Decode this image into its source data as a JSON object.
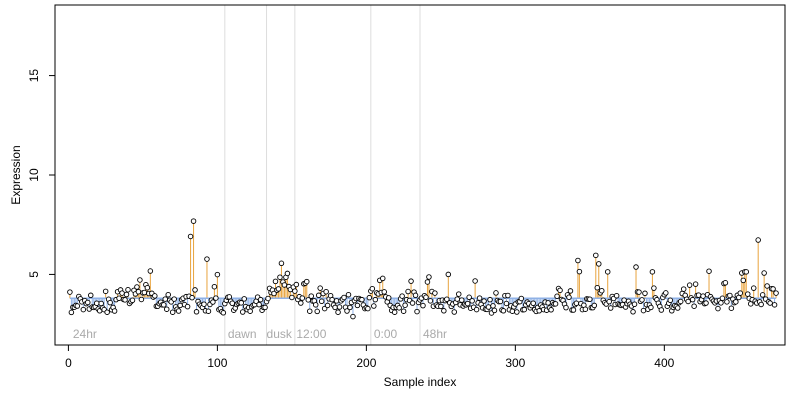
{
  "chart_data": {
    "type": "scatter",
    "title": "",
    "xlabel": "Sample index",
    "ylabel": "Expression",
    "xlim": [
      -9,
      481
    ],
    "ylim": [
      1.45,
      18.55
    ],
    "xticks": [
      0,
      100,
      200,
      300,
      400
    ],
    "yticks": [
      5,
      10,
      15
    ],
    "baseline": 3.8,
    "colors": {
      "above": "#e8a33c",
      "below": "#8fb1e6",
      "point_stroke": "#000000",
      "point_fill": "#ffffff",
      "vline": "#dddddd",
      "region_label": "#aaaaaa"
    },
    "vlines": [
      105,
      133,
      152,
      203,
      236
    ],
    "region_labels": [
      {
        "x": 3,
        "text": "24hr"
      },
      {
        "x": 107,
        "text": "dawn"
      },
      {
        "x": 133,
        "text": "dusk"
      },
      {
        "x": 153,
        "text": "12:00"
      },
      {
        "x": 205,
        "text": "0:00"
      },
      {
        "x": 238,
        "text": "48hr"
      }
    ],
    "x_start": 1,
    "values": [
      4.11,
      3.09,
      3.35,
      3.35,
      3.44,
      3.41,
      3.89,
      3.77,
      3.62,
      3.23,
      3.68,
      3.53,
      3.59,
      3.26,
      3.95,
      3.36,
      3.34,
      3.38,
      3.55,
      3.26,
      3.17,
      3.54,
      3.31,
      3.23,
      4.15,
      3.1,
      3.75,
      3.58,
      3.22,
      3.34,
      3.16,
      3.73,
      4.13,
      3.8,
      4.22,
      4.06,
      3.74,
      3.72,
      3.99,
      4.23,
      3.54,
      3.63,
      3.7,
      4.2,
      4.02,
      4.37,
      4.13,
      4.72,
      3.74,
      4.07,
      4.09,
      4.48,
      4.33,
      4.04,
      5.17,
      4.05,
      3.86,
      3.92,
      3.4,
      3.4,
      3.53,
      3.6,
      3.47,
      3.47,
      3.76,
      3.25,
      3.98,
      3.7,
      3.62,
      3.1,
      3.76,
      3.37,
      3.25,
      3.16,
      3.44,
      3.73,
      3.8,
      3.48,
      3.88,
      3.38,
      3.9,
      6.91,
      3.83,
      7.68,
      4.22,
      3.12,
      3.64,
      3.5,
      3.42,
      3.34,
      3.5,
      3.17,
      5.77,
      3.15,
      3.49,
      3.71,
      3.61,
      4.38,
      3.81,
      4.99,
      3.23,
      3.28,
      3.13,
      3.07,
      3.53,
      3.7,
      3.85,
      3.87,
      3.65,
      3.55,
      3.2,
      3.31,
      3.49,
      3.55,
      3.6,
      3.57,
      3.11,
      3.77,
      3.38,
      3.23,
      3.33,
      3.15,
      3.38,
      3.45,
      3.48,
      3.65,
      3.86,
      3.48,
      3.73,
      3.2,
      3.34,
      3.34,
      3.63,
      3.79,
      4.3,
      4.09,
      4.21,
      4.04,
      4.65,
      4.21,
      4.27,
      4.86,
      5.56,
      4.62,
      4.47,
      4.86,
      5.05,
      4.39,
      4.24,
      3.84,
      4.36,
      4.16,
      4.49,
      3.74,
      3.88,
      3.56,
      3.81,
      4.53,
      4.56,
      4.64,
      3.72,
      3.15,
      3.91,
      3.66,
      3.67,
      3.47,
      3.14,
      3.95,
      4.31,
      3.65,
      4.04,
      3.28,
      4.13,
      3.44,
      3.77,
      3.93,
      3.73,
      3.46,
      3.34,
      3.67,
      3.1,
      3.36,
      3.67,
      3.76,
      3.84,
      3.35,
      3.16,
      3.98,
      3.34,
      3.59,
      2.88,
      3.68,
      3.79,
      3.44,
      3.79,
      3.74,
      3.73,
      3.46,
      3.28,
      3.33,
      3.28,
      3.83,
      4.16,
      4.28,
      3.41,
      3.73,
      4.07,
      4.02,
      4.7,
      4.09,
      4.8,
      4.12,
      3.87,
      3.62,
      3.82,
      3.44,
      3.19,
      3.34,
      3.1,
      3.35,
      3.44,
      3.32,
      3.77,
      3.91,
      3.15,
      3.45,
      3.73,
      4.14,
      3.69,
      4.66,
      3.56,
      4.11,
      3.95,
      3.13,
      3.59,
      3.72,
      3.81,
      3.43,
      3.93,
      3.85,
      4.62,
      4.87,
      3.67,
      4.14,
      3.4,
      4.06,
      3.46,
      3.4,
      3.68,
      3.39,
      3.71,
      3.17,
      3.68,
      3.75,
      5.0,
      3.57,
      3.39,
      3.51,
      3.11,
      3.59,
      3.76,
      4.01,
      3.47,
      3.71,
      3.41,
      3.5,
      3.47,
      3.53,
      3.85,
      3.3,
      3.67,
      3.35,
      4.67,
      3.23,
      3.57,
      3.81,
      3.49,
      3.32,
      3.66,
      3.25,
      3.24,
      3.36,
      3.73,
      3.06,
      3.42,
      3.19,
      4.07,
      3.69,
      3.63,
      3.64,
      3.21,
      3.17,
      3.93,
      3.54,
      3.94,
      3.22,
      3.42,
      3.15,
      3.37,
      3.51,
      3.11,
      3.62,
      3.63,
      3.79,
      3.22,
      3.23,
      3.47,
      3.61,
      3.53,
      3.32,
      3.43,
      3.55,
      3.23,
      3.14,
      3.34,
      3.17,
      3.46,
      3.36,
      3.23,
      3.61,
      3.2,
      3.57,
      3.31,
      3.22,
      3.58,
      3.51,
      3.52,
      3.9,
      4.29,
      4.2,
      3.74,
      3.69,
      3.51,
      3.33,
      3.97,
      3.85,
      4.17,
      3.21,
      3.21,
      3.48,
      3.55,
      5.7,
      5.14,
      3.53,
      3.23,
      3.45,
      3.25,
      3.77,
      3.76,
      3.75,
      3.33,
      3.33,
      3.44,
      5.96,
      4.33,
      5.53,
      4.07,
      4.18,
      3.7,
      3.58,
      3.51,
      5.13,
      3.63,
      3.31,
      3.89,
      3.79,
      3.49,
      3.93,
      3.51,
      3.47,
      3.44,
      3.48,
      3.71,
      3.36,
      3.53,
      3.65,
      3.5,
      3.41,
      3.12,
      3.5,
      5.37,
      4.12,
      4.11,
      3.65,
      3.72,
      3.18,
      4.05,
      3.48,
      3.25,
      3.46,
      3.34,
      5.13,
      4.31,
      3.82,
      3.73,
      3.55,
      3.39,
      3.21,
      3.84,
      3.98,
      4.07,
      3.4,
      3.55,
      3.7,
      3.17,
      3.34,
      3.43,
      3.39,
      3.31,
      3.58,
      3.64,
      4.04,
      4.26,
      3.95,
      3.75,
      3.64,
      4.46,
      3.82,
      3.73,
      3.4,
      4.51,
      3.94,
      3.96,
      3.63,
      3.73,
      3.91,
      3.53,
      3.56,
      3.98,
      5.16,
      3.88,
      3.76,
      3.66,
      3.57,
      3.66,
      3.28,
      3.69,
      3.57,
      3.8,
      4.54,
      4.58,
      3.62,
      3.91,
      3.94,
      3.3,
      3.76,
      3.58,
      3.62,
      3.95,
      3.84,
      4.06,
      5.07,
      4.7,
      5.13,
      5.13,
      4.01,
      3.79,
      3.52,
      3.73,
      4.31,
      3.65,
      3.56,
      6.73,
      3.62,
      3.49,
      3.97,
      5.07,
      3.76,
      4.42,
      3.62,
      3.56,
      4.28,
      4.27,
      3.47,
      4.06
    ]
  }
}
